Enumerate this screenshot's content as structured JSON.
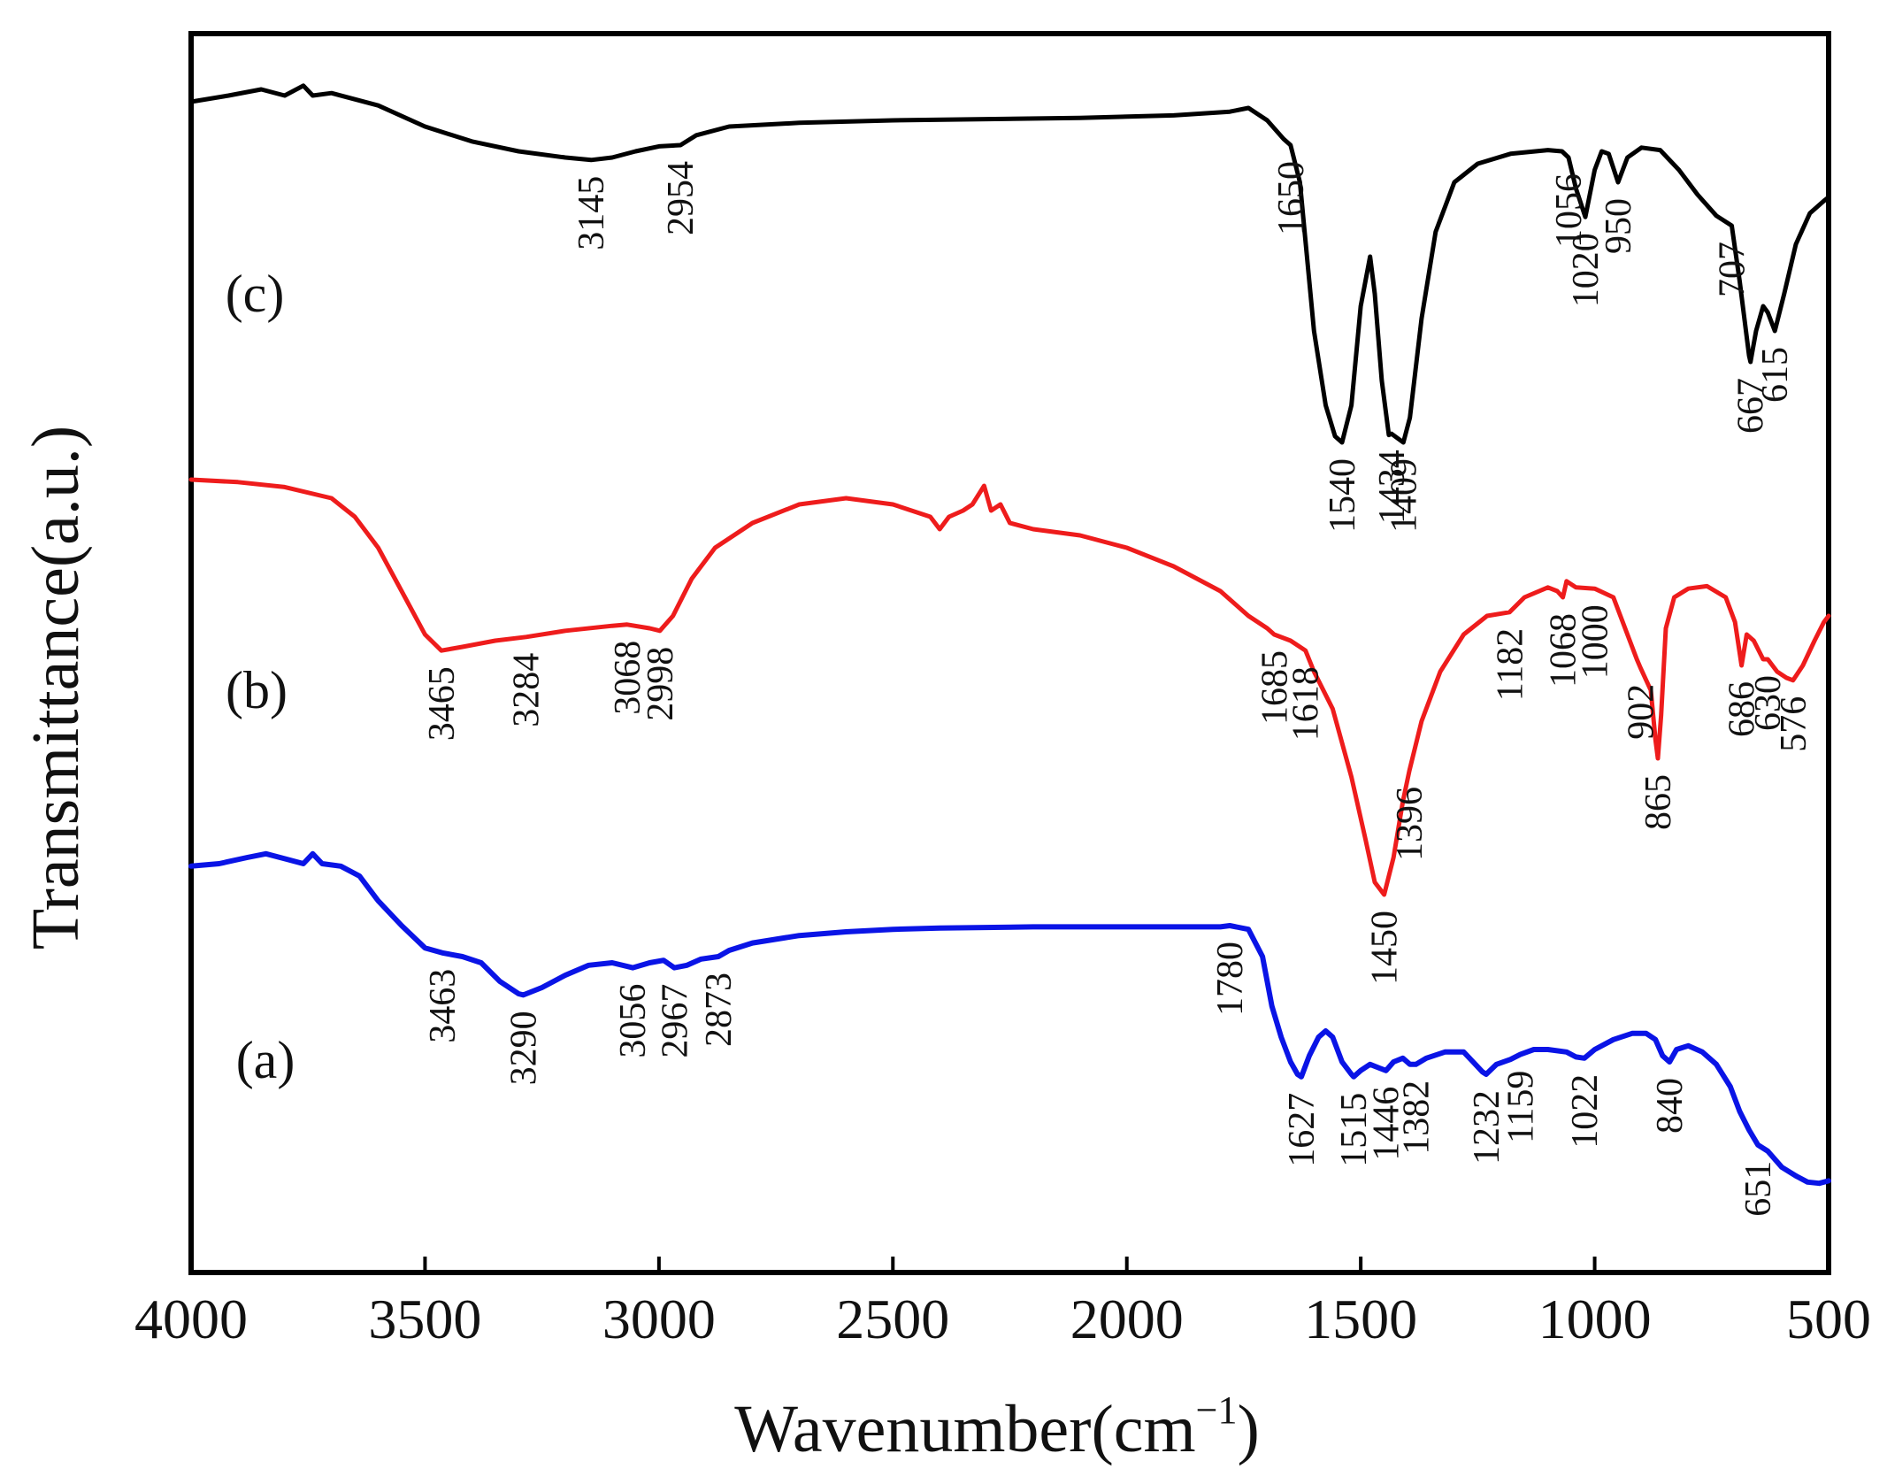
{
  "chart_data": {
    "type": "line",
    "title": "",
    "xlabel": "Wavenumber(cm",
    "xlabel_superscript": "−1",
    "xlabel_close": ")",
    "ylabel": "Transmittance(a.u.)",
    "xlim": [
      4000,
      500
    ],
    "ylim": [
      0,
      100
    ],
    "x_ticks": [
      4000,
      3500,
      3000,
      2500,
      2000,
      1500,
      1000,
      500
    ],
    "x_tick_labels": [
      "4000",
      "3500",
      "3000",
      "2500",
      "2000",
      "1500",
      "1000",
      "500"
    ],
    "series": [
      {
        "name": "(c)",
        "color": "#000000",
        "points": [
          [
            4000,
            94.5
          ],
          [
            3920,
            95.0
          ],
          [
            3850,
            95.5
          ],
          [
            3800,
            95.0
          ],
          [
            3760,
            95.8
          ],
          [
            3740,
            95.0
          ],
          [
            3700,
            95.2
          ],
          [
            3600,
            94.2
          ],
          [
            3500,
            92.5
          ],
          [
            3400,
            91.3
          ],
          [
            3300,
            90.5
          ],
          [
            3200,
            90.0
          ],
          [
            3145,
            89.8
          ],
          [
            3100,
            90.0
          ],
          [
            3050,
            90.5
          ],
          [
            3000,
            90.9
          ],
          [
            2954,
            91.0
          ],
          [
            2920,
            91.8
          ],
          [
            2850,
            92.5
          ],
          [
            2700,
            92.8
          ],
          [
            2500,
            93.0
          ],
          [
            2300,
            93.1
          ],
          [
            2100,
            93.2
          ],
          [
            1900,
            93.4
          ],
          [
            1780,
            93.7
          ],
          [
            1740,
            94.0
          ],
          [
            1700,
            93.0
          ],
          [
            1665,
            91.5
          ],
          [
            1650,
            91.0
          ],
          [
            1630,
            88.0
          ],
          [
            1600,
            76.0
          ],
          [
            1575,
            70.0
          ],
          [
            1555,
            67.5
          ],
          [
            1540,
            67.0
          ],
          [
            1520,
            70.0
          ],
          [
            1500,
            78.0
          ],
          [
            1480,
            82.0
          ],
          [
            1470,
            79.0
          ],
          [
            1455,
            72.0
          ],
          [
            1440,
            67.6
          ],
          [
            1434,
            67.7
          ],
          [
            1420,
            67.3
          ],
          [
            1409,
            67.0
          ],
          [
            1395,
            69.0
          ],
          [
            1370,
            77.0
          ],
          [
            1340,
            84.0
          ],
          [
            1300,
            88.0
          ],
          [
            1250,
            89.5
          ],
          [
            1180,
            90.3
          ],
          [
            1100,
            90.6
          ],
          [
            1070,
            90.5
          ],
          [
            1056,
            90.0
          ],
          [
            1040,
            87.5
          ],
          [
            1020,
            85.2
          ],
          [
            1000,
            89.0
          ],
          [
            985,
            90.5
          ],
          [
            970,
            90.3
          ],
          [
            950,
            88.0
          ],
          [
            930,
            90.0
          ],
          [
            900,
            90.8
          ],
          [
            860,
            90.6
          ],
          [
            820,
            89.0
          ],
          [
            780,
            87.0
          ],
          [
            740,
            85.3
          ],
          [
            707,
            84.5
          ],
          [
            690,
            80.0
          ],
          [
            670,
            74.0
          ],
          [
            667,
            73.5
          ],
          [
            655,
            76.0
          ],
          [
            640,
            78.0
          ],
          [
            630,
            77.5
          ],
          [
            615,
            76.0
          ],
          [
            595,
            79.0
          ],
          [
            570,
            83.0
          ],
          [
            540,
            85.5
          ],
          [
            510,
            86.5
          ],
          [
            500,
            86.8
          ]
        ],
        "peak_labels": [
          "3145",
          "2954",
          "1650",
          "1540",
          "1434",
          "1409",
          "1056",
          "1020",
          "950",
          "707",
          "667",
          "615"
        ]
      },
      {
        "name": "(b)",
        "color": "#ee1c1c",
        "points": [
          [
            4000,
            64.0
          ],
          [
            3900,
            63.8
          ],
          [
            3800,
            63.4
          ],
          [
            3700,
            62.5
          ],
          [
            3650,
            61.0
          ],
          [
            3600,
            58.5
          ],
          [
            3550,
            55.0
          ],
          [
            3500,
            51.5
          ],
          [
            3465,
            50.2
          ],
          [
            3420,
            50.5
          ],
          [
            3350,
            51.0
          ],
          [
            3284,
            51.3
          ],
          [
            3200,
            51.8
          ],
          [
            3100,
            52.2
          ],
          [
            3068,
            52.3
          ],
          [
            3020,
            52.0
          ],
          [
            2998,
            51.8
          ],
          [
            2970,
            53.0
          ],
          [
            2930,
            56.0
          ],
          [
            2880,
            58.5
          ],
          [
            2800,
            60.5
          ],
          [
            2700,
            62.0
          ],
          [
            2600,
            62.5
          ],
          [
            2500,
            62.0
          ],
          [
            2420,
            61.0
          ],
          [
            2400,
            60.0
          ],
          [
            2380,
            61.0
          ],
          [
            2350,
            61.5
          ],
          [
            2330,
            62.0
          ],
          [
            2305,
            63.5
          ],
          [
            2290,
            61.5
          ],
          [
            2270,
            62.0
          ],
          [
            2250,
            60.5
          ],
          [
            2200,
            60.0
          ],
          [
            2100,
            59.5
          ],
          [
            2000,
            58.5
          ],
          [
            1900,
            57.0
          ],
          [
            1800,
            55.0
          ],
          [
            1740,
            53.0
          ],
          [
            1700,
            52.0
          ],
          [
            1685,
            51.5
          ],
          [
            1650,
            51.0
          ],
          [
            1618,
            50.2
          ],
          [
            1600,
            48.5
          ],
          [
            1560,
            45.5
          ],
          [
            1520,
            40.0
          ],
          [
            1490,
            35.0
          ],
          [
            1470,
            31.5
          ],
          [
            1450,
            30.5
          ],
          [
            1430,
            33.5
          ],
          [
            1410,
            38.0
          ],
          [
            1396,
            40.5
          ],
          [
            1370,
            44.5
          ],
          [
            1330,
            48.5
          ],
          [
            1280,
            51.5
          ],
          [
            1230,
            53.0
          ],
          [
            1182,
            53.3
          ],
          [
            1150,
            54.5
          ],
          [
            1100,
            55.3
          ],
          [
            1080,
            55.0
          ],
          [
            1068,
            54.5
          ],
          [
            1060,
            55.8
          ],
          [
            1040,
            55.3
          ],
          [
            1000,
            55.2
          ],
          [
            960,
            54.5
          ],
          [
            930,
            51.5
          ],
          [
            910,
            49.5
          ],
          [
            902,
            48.8
          ],
          [
            880,
            47.0
          ],
          [
            870,
            43.0
          ],
          [
            865,
            41.5
          ],
          [
            858,
            45.0
          ],
          [
            848,
            52.0
          ],
          [
            830,
            54.5
          ],
          [
            800,
            55.2
          ],
          [
            760,
            55.4
          ],
          [
            720,
            54.5
          ],
          [
            700,
            52.5
          ],
          [
            690,
            50.0
          ],
          [
            686,
            49.0
          ],
          [
            675,
            51.5
          ],
          [
            660,
            51.0
          ],
          [
            640,
            49.5
          ],
          [
            630,
            49.5
          ],
          [
            610,
            48.5
          ],
          [
            590,
            48.0
          ],
          [
            576,
            47.8
          ],
          [
            555,
            49.0
          ],
          [
            530,
            51.0
          ],
          [
            510,
            52.5
          ],
          [
            500,
            53.0
          ]
        ],
        "peak_labels": [
          "3465",
          "3284",
          "3068",
          "2998",
          "1685",
          "1618",
          "1450",
          "1396",
          "1182",
          "1068",
          "1000",
          "902",
          "865",
          "686",
          "630",
          "576"
        ]
      },
      {
        "name": "(a)",
        "color": "#0a14e6",
        "points": [
          [
            4000,
            32.8
          ],
          [
            3940,
            33.0
          ],
          [
            3880,
            33.5
          ],
          [
            3840,
            33.8
          ],
          [
            3800,
            33.4
          ],
          [
            3760,
            33.0
          ],
          [
            3740,
            33.8
          ],
          [
            3720,
            33.0
          ],
          [
            3680,
            32.8
          ],
          [
            3640,
            32.0
          ],
          [
            3600,
            30.0
          ],
          [
            3550,
            28.0
          ],
          [
            3500,
            26.2
          ],
          [
            3463,
            25.8
          ],
          [
            3420,
            25.5
          ],
          [
            3380,
            25.0
          ],
          [
            3340,
            23.5
          ],
          [
            3300,
            22.5
          ],
          [
            3290,
            22.4
          ],
          [
            3250,
            23.0
          ],
          [
            3200,
            24.0
          ],
          [
            3150,
            24.8
          ],
          [
            3100,
            25.0
          ],
          [
            3056,
            24.6
          ],
          [
            3020,
            25.0
          ],
          [
            2990,
            25.2
          ],
          [
            2967,
            24.6
          ],
          [
            2940,
            24.8
          ],
          [
            2910,
            25.3
          ],
          [
            2873,
            25.5
          ],
          [
            2850,
            26.0
          ],
          [
            2800,
            26.6
          ],
          [
            2700,
            27.2
          ],
          [
            2600,
            27.5
          ],
          [
            2500,
            27.7
          ],
          [
            2400,
            27.8
          ],
          [
            2200,
            27.9
          ],
          [
            2000,
            27.9
          ],
          [
            1800,
            27.9
          ],
          [
            1780,
            28.0
          ],
          [
            1740,
            27.7
          ],
          [
            1710,
            25.5
          ],
          [
            1690,
            21.5
          ],
          [
            1670,
            19.0
          ],
          [
            1650,
            17.0
          ],
          [
            1635,
            16.0
          ],
          [
            1627,
            15.8
          ],
          [
            1610,
            17.5
          ],
          [
            1590,
            19.0
          ],
          [
            1575,
            19.5
          ],
          [
            1560,
            19.0
          ],
          [
            1540,
            17.0
          ],
          [
            1520,
            16.0
          ],
          [
            1515,
            15.8
          ],
          [
            1500,
            16.3
          ],
          [
            1480,
            16.8
          ],
          [
            1460,
            16.5
          ],
          [
            1446,
            16.3
          ],
          [
            1430,
            17.0
          ],
          [
            1410,
            17.3
          ],
          [
            1395,
            16.8
          ],
          [
            1382,
            16.8
          ],
          [
            1360,
            17.3
          ],
          [
            1320,
            17.8
          ],
          [
            1280,
            17.8
          ],
          [
            1260,
            17.0
          ],
          [
            1240,
            16.2
          ],
          [
            1232,
            16.0
          ],
          [
            1210,
            16.8
          ],
          [
            1180,
            17.2
          ],
          [
            1159,
            17.6
          ],
          [
            1130,
            18.0
          ],
          [
            1100,
            18.0
          ],
          [
            1060,
            17.8
          ],
          [
            1040,
            17.4
          ],
          [
            1022,
            17.3
          ],
          [
            1000,
            18.0
          ],
          [
            960,
            18.8
          ],
          [
            920,
            19.3
          ],
          [
            890,
            19.3
          ],
          [
            870,
            18.8
          ],
          [
            855,
            17.5
          ],
          [
            840,
            17.0
          ],
          [
            825,
            18.0
          ],
          [
            800,
            18.3
          ],
          [
            770,
            17.8
          ],
          [
            740,
            16.8
          ],
          [
            710,
            15.0
          ],
          [
            690,
            13.0
          ],
          [
            670,
            11.5
          ],
          [
            651,
            10.3
          ],
          [
            630,
            9.8
          ],
          [
            600,
            8.5
          ],
          [
            570,
            7.8
          ],
          [
            545,
            7.3
          ],
          [
            520,
            7.2
          ],
          [
            500,
            7.4
          ]
        ],
        "peak_labels": [
          "3463",
          "3290",
          "3056",
          "2967",
          "2873",
          "1780",
          "1627",
          "1515",
          "1446",
          "1382",
          "1232",
          "1159",
          "1022",
          "840",
          "651"
        ]
      }
    ]
  }
}
